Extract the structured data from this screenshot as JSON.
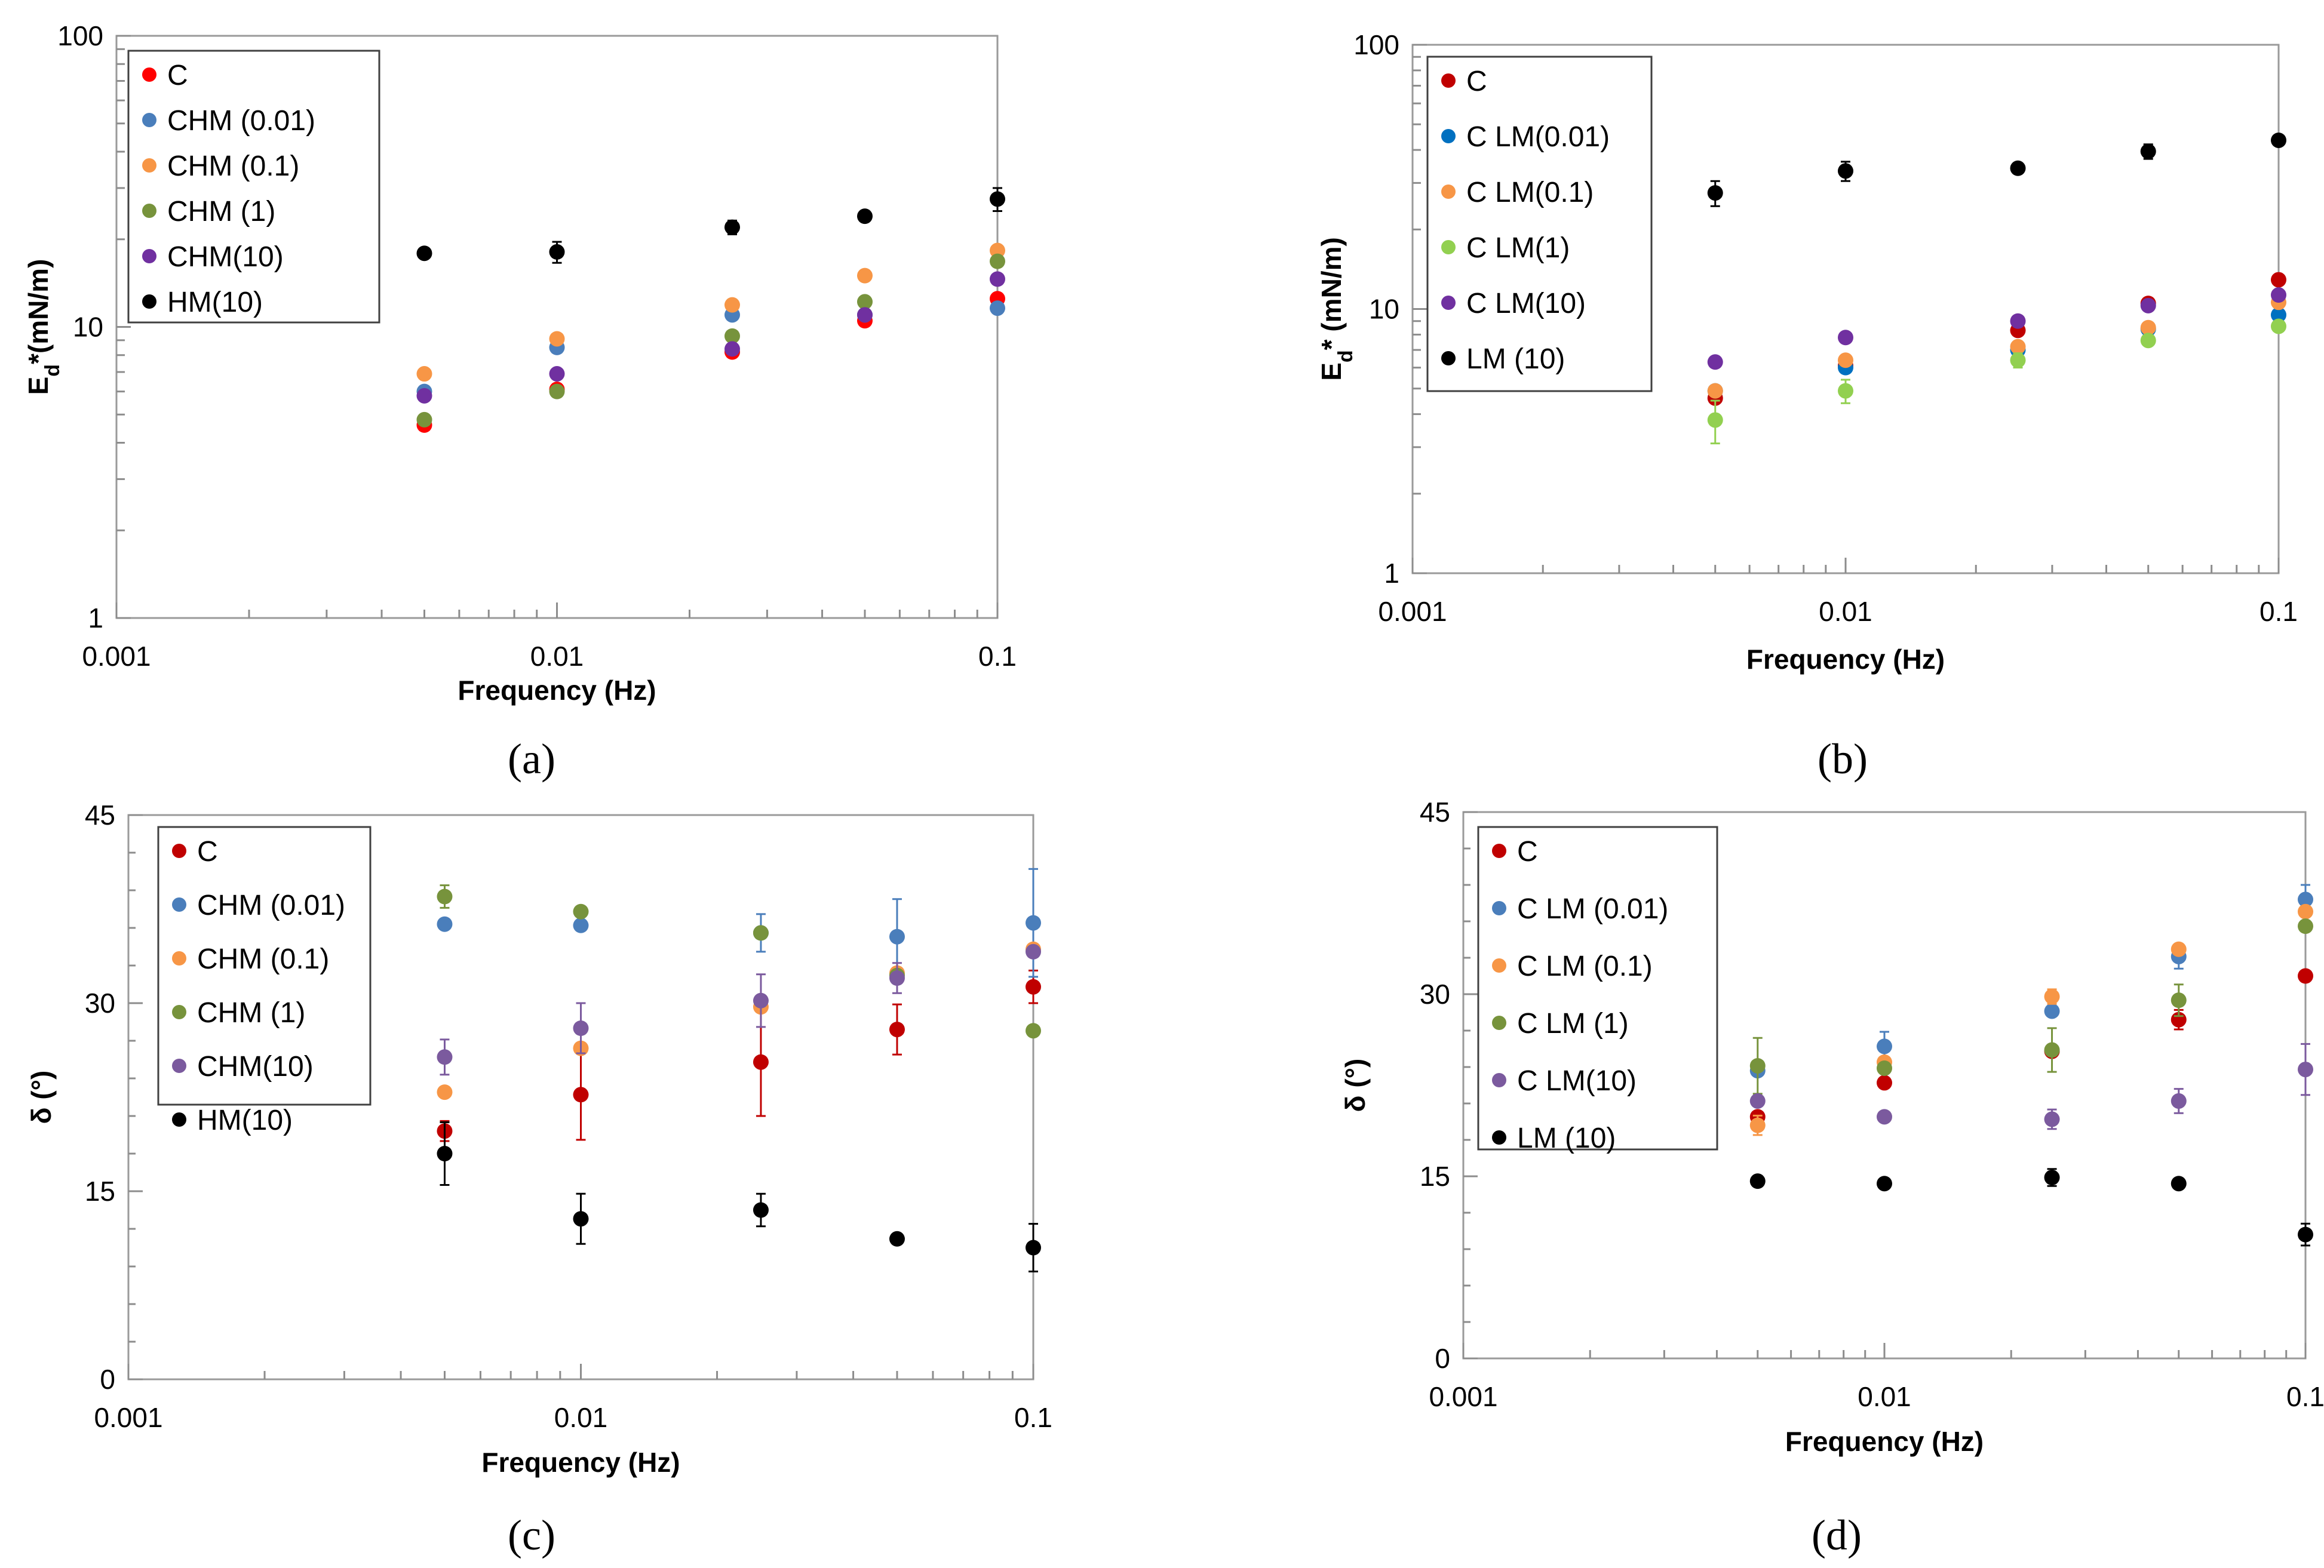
{
  "chart_data": [
    {
      "panel": "a",
      "type": "scatter",
      "caption": "(a)",
      "xscale": "log",
      "yscale": "log",
      "xlim": [
        0.001,
        0.1
      ],
      "ylim": [
        1,
        100
      ],
      "xlabel": "Frequency (Hz)",
      "ylabel_main": "E",
      "ylabel_sub": "d",
      "ylabel_rest": "*(mN/m)",
      "xticks": [
        {
          "v": 0.001,
          "label": "0.001"
        },
        {
          "v": 0.01,
          "label": "0.01"
        },
        {
          "v": 0.1,
          "label": "0.1"
        }
      ],
      "yticks": [
        {
          "v": 1,
          "label": "1"
        },
        {
          "v": 10,
          "label": "10"
        },
        {
          "v": 100,
          "label": "100"
        }
      ],
      "legend_position": "top-left",
      "x": [
        0.005,
        0.01,
        0.025,
        0.05,
        0.1
      ],
      "series": [
        {
          "name": "C",
          "color": "#ff0000",
          "values": [
            4.6,
            6.1,
            8.2,
            10.5,
            12.5
          ],
          "err": [
            0,
            0,
            0,
            0,
            0
          ]
        },
        {
          "name": "CHM (0.01)",
          "color": "#4a7ebb",
          "values": [
            6.0,
            8.5,
            11.0,
            11.0,
            11.6
          ],
          "err": [
            0,
            0,
            0,
            0,
            0
          ]
        },
        {
          "name": "CHM (0.1)",
          "color": "#f79646",
          "values": [
            6.9,
            9.1,
            11.9,
            15.0,
            18.3
          ],
          "err": [
            0,
            0,
            0,
            0,
            0
          ]
        },
        {
          "name": "CHM (1)",
          "color": "#77933c",
          "values": [
            4.8,
            6.0,
            9.3,
            12.2,
            16.8
          ],
          "err": [
            0,
            0,
            0,
            0,
            0
          ]
        },
        {
          "name": "CHM(10)",
          "color": "#7030a0",
          "values": [
            5.8,
            6.9,
            8.4,
            11.0,
            14.6
          ],
          "err": [
            0,
            0,
            0,
            0,
            0
          ]
        },
        {
          "name": "HM(10)",
          "color": "#000000",
          "values": [
            17.9,
            18.1,
            22.0,
            24.0,
            27.5
          ],
          "err": [
            0.6,
            1.5,
            1.2,
            0.6,
            2.5
          ]
        }
      ]
    },
    {
      "panel": "b",
      "type": "scatter",
      "caption": "(b)",
      "xscale": "log",
      "yscale": "log",
      "xlim": [
        0.001,
        0.1
      ],
      "ylim": [
        1,
        100
      ],
      "xlabel": "Frequency (Hz)",
      "ylabel_main": "E",
      "ylabel_sub": "d",
      "ylabel_rest": "* (mN/m)",
      "xticks": [
        {
          "v": 0.001,
          "label": "0.001"
        },
        {
          "v": 0.01,
          "label": "0.01"
        },
        {
          "v": 0.1,
          "label": "0.1"
        }
      ],
      "yticks": [
        {
          "v": 1,
          "label": "1"
        },
        {
          "v": 10,
          "label": "10"
        },
        {
          "v": 100,
          "label": "100"
        }
      ],
      "legend_position": "top-left",
      "x": [
        0.005,
        0.01,
        0.025,
        0.05,
        0.1
      ],
      "series": [
        {
          "name": "C",
          "color": "#c00000",
          "values": [
            4.6,
            6.1,
            8.3,
            10.5,
            12.9
          ],
          "err": [
            0,
            0.2,
            0,
            0,
            0
          ]
        },
        {
          "name": "C LM(0.01)",
          "color": "#0070c0",
          "values": [
            4.9,
            6.0,
            7.0,
            8.4,
            9.5
          ],
          "err": [
            0,
            0,
            0,
            0,
            0
          ]
        },
        {
          "name": "C LM(0.1)",
          "color": "#f79646",
          "values": [
            4.9,
            6.4,
            7.2,
            8.5,
            10.6
          ],
          "err": [
            0,
            0,
            0,
            0,
            0
          ]
        },
        {
          "name": "C LM(1)",
          "color": "#92d050",
          "values": [
            3.8,
            4.9,
            6.4,
            7.6,
            8.6
          ],
          "err": [
            0.7,
            0.5,
            0.4,
            0.3,
            0
          ]
        },
        {
          "name": "C LM(10)",
          "color": "#7030a0",
          "values": [
            6.3,
            7.8,
            9.0,
            10.3,
            11.3
          ],
          "err": [
            0,
            0,
            0,
            0,
            0
          ]
        },
        {
          "name": "LM (10)",
          "color": "#000000",
          "values": [
            27.5,
            33.3,
            34.1,
            39.5,
            43.5
          ],
          "err": [
            3.0,
            2.8,
            0,
            2.5,
            0
          ]
        }
      ]
    },
    {
      "panel": "c",
      "type": "scatter",
      "caption": "(c)",
      "xscale": "log",
      "yscale": "linear",
      "xlim": [
        0.001,
        0.1
      ],
      "ylim": [
        0,
        45
      ],
      "xlabel": "Frequency (Hz)",
      "ylabel_main": "δ (°)",
      "ylabel_sub": "",
      "ylabel_rest": "",
      "xticks": [
        {
          "v": 0.001,
          "label": "0.001"
        },
        {
          "v": 0.01,
          "label": "0.01"
        },
        {
          "v": 0.1,
          "label": "0.1"
        }
      ],
      "yticks": [
        {
          "v": 0,
          "label": "0"
        },
        {
          "v": 15,
          "label": "15"
        },
        {
          "v": 30,
          "label": "30"
        },
        {
          "v": 45,
          "label": "45"
        }
      ],
      "legend_position": "top-left",
      "x": [
        0.005,
        0.01,
        0.025,
        0.05,
        0.1
      ],
      "series": [
        {
          "name": "C",
          "color": "#c00000",
          "values": [
            19.8,
            22.7,
            25.3,
            27.9,
            31.3
          ],
          "err": [
            0.8,
            3.6,
            4.3,
            2.0,
            1.3
          ]
        },
        {
          "name": "CHM (0.01)",
          "color": "#4a7ebb",
          "values": [
            36.3,
            36.2,
            35.6,
            35.3,
            36.4
          ],
          "err": [
            0,
            0,
            1.5,
            3.0,
            4.3
          ]
        },
        {
          "name": "CHM (0.1)",
          "color": "#f79646",
          "values": [
            22.9,
            26.4,
            29.7,
            32.4,
            34.3
          ],
          "err": [
            0,
            0,
            0,
            0,
            0
          ]
        },
        {
          "name": "CHM (1)",
          "color": "#77933c",
          "values": [
            38.5,
            37.3,
            35.6,
            32.2,
            27.8
          ],
          "err": [
            0.9,
            0,
            0,
            0,
            0
          ]
        },
        {
          "name": "CHM(10)",
          "color": "#7b5a9e",
          "values": [
            25.7,
            28.0,
            30.2,
            32.0,
            34.1
          ],
          "err": [
            1.4,
            2.0,
            2.1,
            1.2,
            0
          ]
        },
        {
          "name": "HM(10)",
          "color": "#000000",
          "values": [
            18.0,
            12.8,
            13.5,
            11.2,
            10.5
          ],
          "err": [
            2.5,
            2.0,
            1.3,
            0,
            1.9
          ]
        }
      ]
    },
    {
      "panel": "d",
      "type": "scatter",
      "caption": "(d)",
      "xscale": "log",
      "yscale": "linear",
      "xlim": [
        0.001,
        0.1
      ],
      "ylim": [
        0,
        45
      ],
      "xlabel": "Frequency (Hz)",
      "ylabel_main": "δ (°)",
      "ylabel_sub": "",
      "ylabel_rest": "",
      "xticks": [
        {
          "v": 0.001,
          "label": "0.001"
        },
        {
          "v": 0.01,
          "label": "0.01"
        },
        {
          "v": 0.1,
          "label": "0.1"
        }
      ],
      "yticks": [
        {
          "v": 0,
          "label": "0"
        },
        {
          "v": 15,
          "label": "15"
        },
        {
          "v": 30,
          "label": "30"
        },
        {
          "v": 45,
          "label": "45"
        }
      ],
      "legend_position": "top-left",
      "x": [
        0.005,
        0.01,
        0.025,
        0.05,
        0.1
      ],
      "series": [
        {
          "name": "C",
          "color": "#c00000",
          "values": [
            19.9,
            22.7,
            25.3,
            27.9,
            31.5
          ],
          "err": [
            0,
            0,
            0,
            0.8,
            0
          ]
        },
        {
          "name": "C LM (0.01)",
          "color": "#4a7ebb",
          "values": [
            23.7,
            25.7,
            28.6,
            33.1,
            37.8
          ],
          "err": [
            0,
            1.2,
            0,
            1.0,
            1.2
          ]
        },
        {
          "name": "C  LM (0.1)",
          "color": "#f79646",
          "values": [
            19.2,
            24.4,
            29.8,
            33.7,
            36.8
          ],
          "err": [
            0.8,
            0,
            0.6,
            0,
            0
          ]
        },
        {
          "name": "C LM (1)",
          "color": "#77933c",
          "values": [
            24.1,
            23.9,
            25.4,
            29.5,
            35.6
          ],
          "err": [
            2.3,
            0,
            1.8,
            1.3,
            0
          ]
        },
        {
          "name": "C LM(10)",
          "color": "#7b5a9e",
          "values": [
            21.2,
            19.9,
            19.7,
            21.2,
            23.8
          ],
          "err": [
            0,
            0,
            0.8,
            1.0,
            2.1
          ]
        },
        {
          "name": "LM (10)",
          "color": "#000000",
          "values": [
            14.6,
            14.4,
            14.9,
            14.4,
            10.2
          ],
          "err": [
            0,
            0,
            0.7,
            0,
            0.9
          ]
        }
      ]
    }
  ]
}
